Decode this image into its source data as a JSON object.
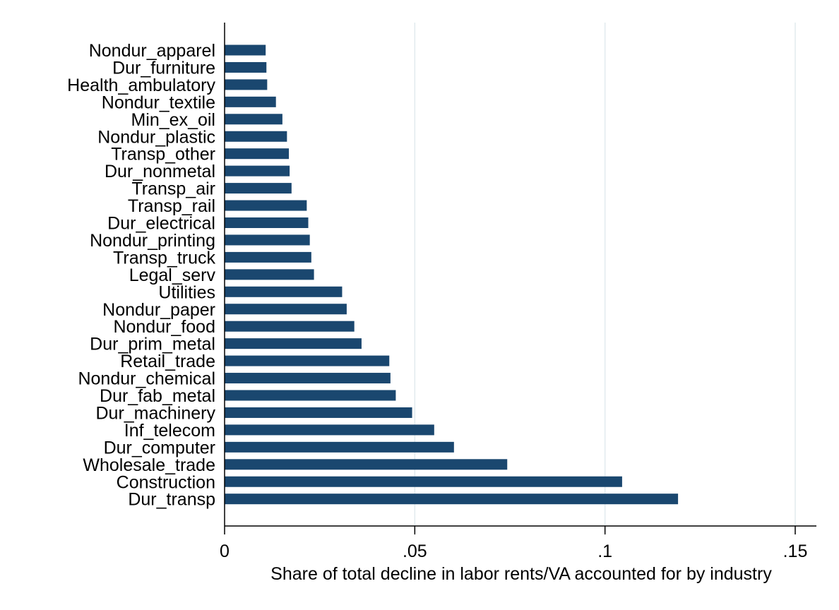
{
  "chart_data": {
    "type": "bar",
    "orientation": "horizontal",
    "categories": [
      "Nondur_apparel",
      "Dur_furniture",
      "Health_ambulatory",
      "Nondur_textile",
      "Min_ex_oil",
      "Nondur_plastic",
      "Transp_other",
      "Dur_nonmetal",
      "Transp_air",
      "Transp_rail",
      "Dur_electrical",
      "Nondur_printing",
      "Transp_truck",
      "Legal_serv",
      "Utilities",
      "Nondur_paper",
      "Nondur_food",
      "Dur_prim_metal",
      "Retail_trade",
      "Nondur_chemical",
      "Dur_fab_metal",
      "Dur_machinery",
      "Inf_telecom",
      "Dur_computer",
      "Wholesale_trade",
      "Construction",
      "Dur_transp"
    ],
    "values": [
      0.0108,
      0.011,
      0.0112,
      0.0135,
      0.0152,
      0.0164,
      0.0169,
      0.0171,
      0.0176,
      0.0216,
      0.022,
      0.0224,
      0.0228,
      0.0235,
      0.0309,
      0.0321,
      0.0341,
      0.036,
      0.0433,
      0.0436,
      0.045,
      0.0493,
      0.0551,
      0.0603,
      0.0743,
      0.1045,
      0.1192
    ],
    "xlim": [
      0,
      0.155
    ],
    "xticks": [
      0,
      0.05,
      0.1,
      0.15
    ],
    "xtick_labels": [
      "0",
      ".05",
      ".1",
      ".15"
    ],
    "xlabel": "Share of total decline in labor rents/VA accounted for by industry",
    "ylabel": "",
    "title": "",
    "grid": "vertical",
    "bar_color": "#1a476f",
    "grid_color": "#e2ebee"
  }
}
